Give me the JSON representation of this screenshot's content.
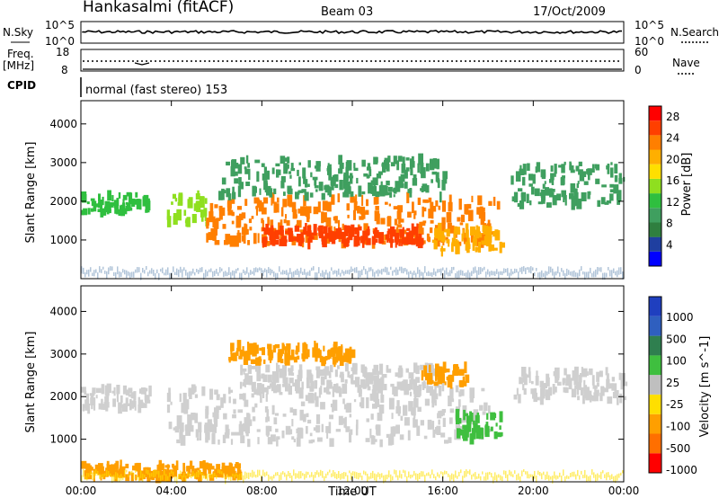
{
  "header": {
    "station": "Hankasalmi (fitACF)",
    "beam": "Beam 03",
    "date": "17/Oct/2009"
  },
  "strips": {
    "nsky_label": "N.Sky",
    "nsky_ticks": [
      "10^5",
      "10^0"
    ],
    "nsearch_label": "N.Search",
    "nsearch_ticks": [
      "10^5",
      "10^0"
    ],
    "freq_label_1": "Freq.",
    "freq_label_2": "[MHz]",
    "freq_ticks": [
      "18",
      "8"
    ],
    "nave_label": "Nave",
    "nave_ticks": [
      "60",
      "0"
    ],
    "cpid_label": "CPID",
    "cpid_text": "normal (fast stereo) 153"
  },
  "colors": {
    "power": [
      "#0000ff",
      "#1f3fa0",
      "#2f7f3f",
      "#3f9f5f",
      "#2fbf3f",
      "#8fdf1f",
      "#ffdf00",
      "#ffaf00",
      "#ff7f00",
      "#ff3f00",
      "#ff0000"
    ],
    "velocity": [
      "#1f3fbf",
      "#2f5fbf",
      "#2f7f4f",
      "#3fbf3f",
      "#bfbfbf",
      "#ffdf00",
      "#ff9f00",
      "#ff6f00",
      "#ff0000"
    ],
    "ground": "#cfcfcf",
    "noise": "#7f9fbf"
  },
  "chart_data": [
    {
      "type": "heatmap",
      "name": "power",
      "ylabel": "Slant Range [km]",
      "xlabel": "",
      "xlim": [
        "00:00",
        "00:00"
      ],
      "ylim": [
        0,
        4600
      ],
      "x_ticks": [
        "00:00",
        "04:00",
        "08:00",
        "12:00",
        "16:00",
        "20:00",
        "00:00"
      ],
      "y_ticks": [
        1000,
        2000,
        3000,
        4000
      ],
      "colorbar": {
        "label": "Power [dB]",
        "ticks": [
          4,
          8,
          12,
          16,
          20,
          24,
          28
        ],
        "range": [
          0,
          30
        ]
      },
      "regions": [
        {
          "t_start": 0.0,
          "t_end": 3.0,
          "r_min": 1700,
          "r_max": 2200,
          "level": 12
        },
        {
          "t_start": 3.8,
          "t_end": 5.5,
          "r_min": 1400,
          "r_max": 2200,
          "level": 14
        },
        {
          "t_start": 5.5,
          "t_end": 18.5,
          "r_min": 900,
          "r_max": 2100,
          "level": 24
        },
        {
          "t_start": 8.0,
          "t_end": 15.0,
          "r_min": 900,
          "r_max": 1300,
          "level": 28
        },
        {
          "t_start": 6.0,
          "t_end": 16.0,
          "r_min": 2100,
          "r_max": 3100,
          "level": 10
        },
        {
          "t_start": 15.5,
          "t_end": 18.6,
          "r_min": 700,
          "r_max": 1300,
          "level": 20
        },
        {
          "t_start": 19.0,
          "t_end": 24.0,
          "r_min": 1900,
          "r_max": 3000,
          "level": 8
        }
      ]
    },
    {
      "type": "heatmap",
      "name": "velocity",
      "ylabel": "Slant Range [km]",
      "xlabel": "Time UT",
      "xlim": [
        "00:00",
        "00:00"
      ],
      "ylim": [
        0,
        4600
      ],
      "x_ticks": [
        "00:00",
        "04:00",
        "08:00",
        "12:00",
        "16:00",
        "20:00",
        "00:00"
      ],
      "y_ticks": [
        1000,
        2000,
        3000,
        4000
      ],
      "colorbar": {
        "label": "Velocity [m s^-1]",
        "ticks": [
          "1000",
          "500",
          "100",
          "25",
          "-25",
          "-100",
          "-500",
          "-1000"
        ]
      },
      "regions": [
        {
          "t_start": 0.0,
          "t_end": 3.0,
          "r_min": 1700,
          "r_max": 2200,
          "level": "ground"
        },
        {
          "t_start": 3.8,
          "t_end": 18.0,
          "r_min": 900,
          "r_max": 2200,
          "level": "ground"
        },
        {
          "t_start": 7.0,
          "t_end": 16.0,
          "r_min": 2100,
          "r_max": 2700,
          "level": "ground"
        },
        {
          "t_start": 6.5,
          "t_end": 12.0,
          "r_min": 2800,
          "r_max": 3200,
          "level": -100
        },
        {
          "t_start": 15.0,
          "t_end": 17.0,
          "r_min": 2300,
          "r_max": 2700,
          "level": -100
        },
        {
          "t_start": 16.5,
          "t_end": 18.5,
          "r_min": 1000,
          "r_max": 1600,
          "level": 100
        },
        {
          "t_start": 19.0,
          "t_end": 24.0,
          "r_min": 1900,
          "r_max": 2600,
          "level": "ground"
        },
        {
          "t_start": 0.0,
          "t_end": 7.0,
          "r_min": 100,
          "r_max": 400,
          "level": -50
        }
      ]
    }
  ]
}
